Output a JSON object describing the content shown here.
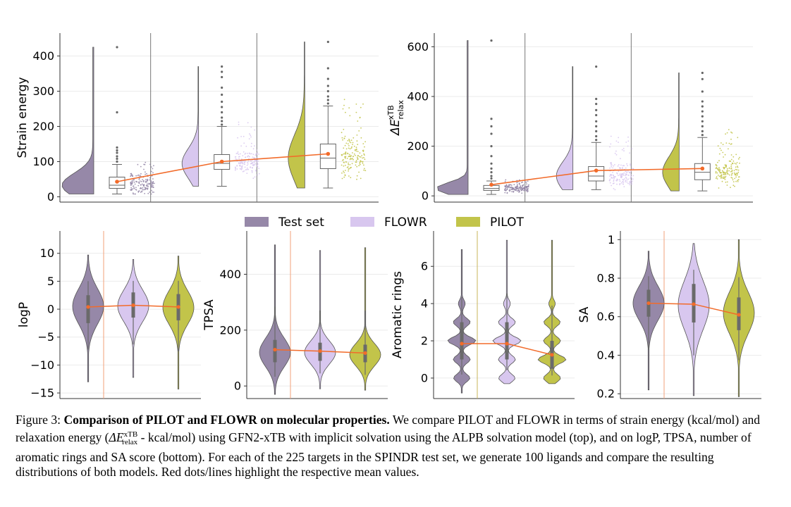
{
  "colors": {
    "test": "#9688a8",
    "flowr": "#d8c7ef",
    "pilot": "#c2c44a",
    "mean": "#f26b2a"
  },
  "legend": {
    "items": [
      "Test set",
      "FLOWR",
      "PILOT"
    ]
  },
  "caption": {
    "figure_label": "Figure 3:",
    "title_text": "Comparison of PILOT and FLOWR on molecular properties.",
    "text_1": "We compare PILOT and FLOWR in terms of strain energy (kcal/mol) and relaxation energy (",
    "energy_symbol": "ΔE",
    "energy_sup": "xTB",
    "energy_sub": "relax",
    "text_2": "- kcal/mol) using GFN2-xTB with implicit solvation using the ALPB solvation model (top), and on logP, TPSA, number of aromatic rings and SA score (bottom). For each of the 225 targets in the SPINDR test set, we generate 100 ligands and compare the resulting distributions of both models. Red dots/lines highlight the respective mean values."
  },
  "chart_data": [
    {
      "type": "raincloud",
      "ylabel": "Strain energy",
      "yticks": [
        0,
        100,
        200,
        300,
        400
      ],
      "ylim": [
        -15,
        465
      ],
      "series": [
        {
          "name": "Test set",
          "mean": 43,
          "q1": 24,
          "median": 33,
          "q3": 56,
          "whisker_low": 8,
          "whisker_high": 92,
          "outliers": [
            100,
            108,
            115,
            125,
            132,
            140,
            240,
            425
          ],
          "max": 425
        },
        {
          "name": "FLOWR",
          "mean": 100,
          "q1": 78,
          "median": 95,
          "q3": 120,
          "whisker_low": 30,
          "whisker_high": 200,
          "outliers": [
            205,
            215,
            225,
            240,
            255,
            270,
            290,
            310,
            340,
            355,
            370
          ],
          "max": 370
        },
        {
          "name": "PILOT",
          "mean": 122,
          "q1": 80,
          "median": 110,
          "q3": 150,
          "whisker_low": 25,
          "whisker_high": 258,
          "outliers": [
            265,
            275,
            285,
            300,
            315,
            335,
            365,
            440
          ],
          "max": 440
        }
      ]
    },
    {
      "type": "raincloud",
      "ylabel": "ΔE relax xTB",
      "yticks": [
        0,
        200,
        400,
        600
      ],
      "ylim": [
        -25,
        655
      ],
      "series": [
        {
          "name": "Test set",
          "mean": 45,
          "q1": 22,
          "median": 30,
          "q3": 42,
          "whisker_low": 6,
          "whisker_high": 60,
          "outliers": [
            70,
            80,
            95,
            110,
            130,
            160,
            200,
            250,
            280,
            310,
            625
          ],
          "max": 625
        },
        {
          "name": "FLOWR",
          "mean": 102,
          "q1": 60,
          "median": 80,
          "q3": 118,
          "whisker_low": 25,
          "whisker_high": 215,
          "outliers": [
            225,
            240,
            260,
            280,
            300,
            325,
            345,
            370,
            390,
            520
          ],
          "max": 520
        },
        {
          "name": "PILOT",
          "mean": 110,
          "q1": 65,
          "median": 95,
          "q3": 130,
          "whisker_low": 20,
          "whisker_high": 235,
          "outliers": [
            245,
            260,
            280,
            300,
            320,
            340,
            360,
            380,
            420,
            470,
            495
          ],
          "max": 495
        }
      ]
    },
    {
      "type": "violin",
      "ylabel": "logP",
      "yticks": [
        -15,
        -10,
        -5,
        0,
        5,
        10
      ],
      "ylim": [
        -16,
        14
      ],
      "series": [
        {
          "name": "Test set",
          "mean": 0.4,
          "min": -13,
          "max": 9.7,
          "q1": -2.5,
          "median": 0.5,
          "q3": 2.5
        },
        {
          "name": "FLOWR",
          "mean": 0.7,
          "min": -12.2,
          "max": 8.9,
          "q1": -1.5,
          "median": 0.6,
          "q3": 3.0
        },
        {
          "name": "PILOT",
          "mean": 0.4,
          "min": -14.3,
          "max": 9.5,
          "q1": -2.0,
          "median": 0.3,
          "q3": 2.7
        }
      ]
    },
    {
      "type": "violin",
      "ylabel": "TPSA",
      "yticks": [
        0,
        200,
        400
      ],
      "ylim": [
        -45,
        555
      ],
      "series": [
        {
          "name": "Test set",
          "mean": 130,
          "min": -30,
          "max": 505,
          "q1": 85,
          "median": 120,
          "q3": 165
        },
        {
          "name": "FLOWR",
          "mean": 125,
          "min": -10,
          "max": 485,
          "q1": 90,
          "median": 120,
          "q3": 155
        },
        {
          "name": "PILOT",
          "mean": 118,
          "min": -15,
          "max": 495,
          "q1": 85,
          "median": 112,
          "q3": 148
        }
      ]
    },
    {
      "type": "violin",
      "ylabel": "Aromatic rings",
      "yticks": [
        0,
        2,
        4,
        6
      ],
      "ylim": [
        -1.1,
        7.9
      ],
      "series": [
        {
          "name": "Test set",
          "mean": 1.85,
          "min": -0.8,
          "max": 6.9,
          "q1": 1.0,
          "median": 2.0,
          "q3": 3.0
        },
        {
          "name": "FLOWR",
          "mean": 1.85,
          "min": -0.3,
          "max": 7.4,
          "q1": 1.0,
          "median": 2.0,
          "q3": 3.0
        },
        {
          "name": "PILOT",
          "mean": 1.25,
          "min": -0.3,
          "max": 7.4,
          "q1": 0.5,
          "median": 1.0,
          "q3": 2.0
        }
      ]
    },
    {
      "type": "violin",
      "ylabel": "SA",
      "yticks": [
        0.2,
        0.4,
        0.6,
        0.8,
        1.0
      ],
      "ylim": [
        0.175,
        1.045
      ],
      "series": [
        {
          "name": "Test set",
          "mean": 0.67,
          "min": 0.22,
          "max": 0.94,
          "q1": 0.6,
          "median": 0.67,
          "q3": 0.74
        },
        {
          "name": "FLOWR",
          "mean": 0.665,
          "min": 0.19,
          "max": 0.98,
          "q1": 0.57,
          "median": 0.66,
          "q3": 0.77
        },
        {
          "name": "PILOT",
          "mean": 0.61,
          "min": 0.185,
          "max": 1.0,
          "q1": 0.53,
          "median": 0.62,
          "q3": 0.7
        }
      ]
    }
  ]
}
